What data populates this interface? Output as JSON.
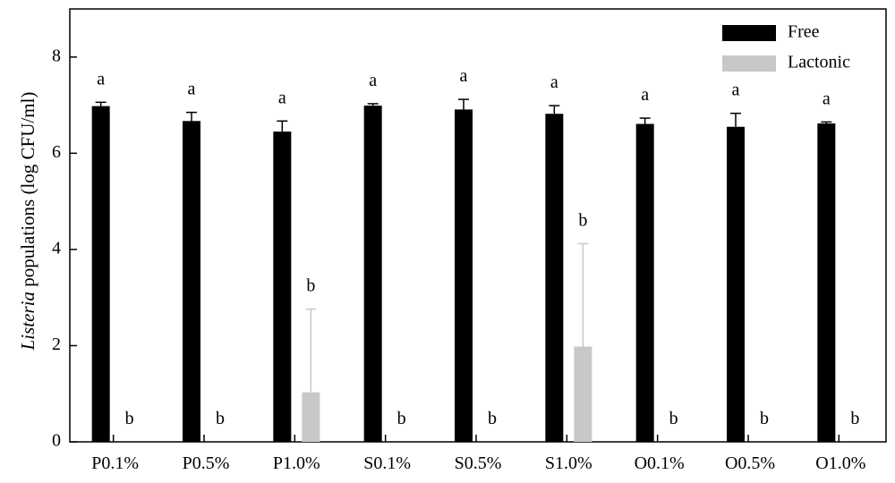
{
  "chart_data": {
    "type": "bar",
    "title": "",
    "xlabel": "",
    "ylabel_italic": "Listeria",
    "ylabel_rest": " populations (log CFU/ml)",
    "ylim": [
      0,
      9
    ],
    "yticks": [
      "0",
      "2",
      "4",
      "6",
      "8"
    ],
    "categories": [
      "P0.1%",
      "P0.5%",
      "P1.0%",
      "S0.1%",
      "S0.5%",
      "S1.0%",
      "O0.1%",
      "O0.5%",
      "O1.0%"
    ],
    "legend_position": "top-right",
    "series": [
      {
        "name": "Free",
        "color": "#000000",
        "values": [
          6.98,
          6.67,
          6.45,
          6.99,
          6.91,
          6.82,
          6.61,
          6.55,
          6.62
        ],
        "errors": [
          0.08,
          0.18,
          0.22,
          0.04,
          0.21,
          0.17,
          0.12,
          0.28,
          0.03
        ],
        "labels": [
          "a",
          "a",
          "a",
          "a",
          "a",
          "a",
          "a",
          "a",
          "a"
        ]
      },
      {
        "name": "Lactonic",
        "color": "#c8c8c8",
        "values": [
          0,
          0,
          1.03,
          0,
          0,
          1.98,
          0,
          0,
          0
        ],
        "errors": [
          0,
          0,
          1.73,
          0,
          0,
          2.14,
          0,
          0,
          0
        ],
        "labels": [
          "b",
          "b",
          "b",
          "b",
          "b",
          "b",
          "b",
          "b",
          "b"
        ]
      }
    ]
  }
}
